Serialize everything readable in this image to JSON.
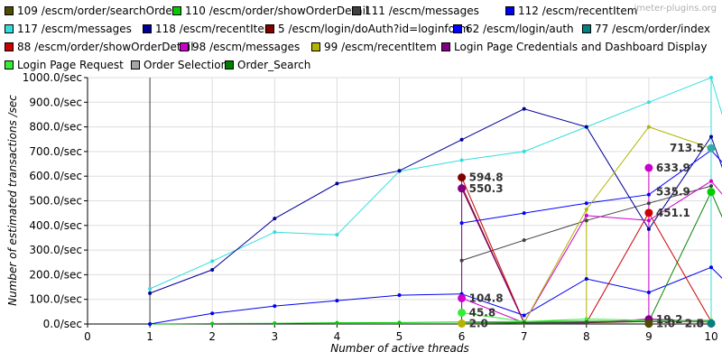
{
  "watermark": "jmeter-plugins.org",
  "chart_data": {
    "type": "line",
    "xlabel": "Number of active threads",
    "ylabel": "Number of estimated transactions /sec",
    "xlim": [
      0,
      10
    ],
    "ylim": [
      0,
      1000
    ],
    "x_ticks": [
      "0",
      "1",
      "2",
      "3",
      "4",
      "5",
      "6",
      "7",
      "8",
      "9",
      "10"
    ],
    "y_ticks": [
      "0.0/sec",
      "100.0/sec",
      "200.0/sec",
      "300.0/sec",
      "400.0/sec",
      "500.0/sec",
      "600.0/sec",
      "700.0/sec",
      "800.0/sec",
      "900.0/sec",
      "1000.0/sec"
    ],
    "grid": true,
    "legend_position": "top",
    "series": [
      {
        "name": "109 /escm/order/searchOrder",
        "color": "#4d4d00",
        "points": [
          [
            6,
            0
          ],
          [
            7,
            5
          ],
          [
            8,
            8
          ],
          [
            9,
            10
          ],
          [
            10,
            8
          ]
        ]
      },
      {
        "name": "110 /escm/order/showOrderDetail",
        "color": "#00cc00",
        "points": [
          [
            1,
            0
          ],
          [
            2,
            2
          ],
          [
            3,
            3
          ],
          [
            4,
            5
          ],
          [
            5,
            6
          ],
          [
            6,
            8
          ],
          [
            7,
            10
          ],
          [
            8,
            12
          ],
          [
            9,
            14
          ],
          [
            10,
            15
          ]
        ]
      },
      {
        "name": "111 /escm/messages",
        "color": "#404040",
        "points": [
          [
            6,
            258
          ],
          [
            7,
            340
          ],
          [
            8,
            420
          ],
          [
            9,
            490
          ],
          [
            10,
            560
          ]
        ]
      },
      {
        "name": "112 /escm/recentItem",
        "color": "#0000ee",
        "points": [
          [
            1,
            0
          ],
          [
            2,
            43
          ],
          [
            3,
            73
          ],
          [
            4,
            95
          ],
          [
            5,
            117
          ],
          [
            6,
            122
          ],
          [
            7,
            35
          ],
          [
            8,
            183
          ],
          [
            9,
            128
          ],
          [
            10,
            230
          ],
          [
            10.2,
            180
          ]
        ]
      },
      {
        "name": "117 /escm/messages",
        "color": "#33dddd",
        "points": [
          [
            1,
            143
          ],
          [
            2,
            255
          ],
          [
            3,
            373
          ],
          [
            4,
            362
          ],
          [
            5,
            620
          ],
          [
            6,
            665
          ],
          [
            7,
            700
          ],
          [
            8,
            800
          ],
          [
            9,
            900
          ],
          [
            10,
            1000
          ],
          [
            10.2,
            830
          ]
        ]
      },
      {
        "name": "118 /escm/recentItem",
        "color": "#000099",
        "points": [
          [
            1,
            125
          ],
          [
            2,
            220
          ],
          [
            3,
            428
          ],
          [
            4,
            570
          ],
          [
            5,
            622
          ],
          [
            6,
            748
          ],
          [
            7,
            873
          ],
          [
            8,
            800
          ],
          [
            9,
            385
          ],
          [
            10,
            760
          ],
          [
            10.2,
            620
          ]
        ]
      },
      {
        "name": "5 /escm/login/doAuth?id=loginform",
        "color": "#800000",
        "points": [
          [
            6,
            560
          ],
          [
            7,
            5
          ],
          [
            8,
            5
          ],
          [
            9,
            10
          ],
          [
            10,
            10
          ]
        ]
      },
      {
        "name": "62 /escm/login/auth",
        "color": "#0000ff",
        "points": [
          [
            6,
            410
          ],
          [
            7,
            450
          ],
          [
            8,
            490
          ],
          [
            9,
            525
          ],
          [
            10,
            705
          ],
          [
            10.2,
            650
          ]
        ]
      },
      {
        "name": "77 /escm/order/index",
        "color": "#008080",
        "points": [
          [
            10,
            713.5
          ]
        ]
      },
      {
        "name": "88 /escm/order/showOrderDetail",
        "color": "#cc0000",
        "points": [
          [
            6,
            594.8
          ],
          [
            7,
            5
          ],
          [
            8,
            5
          ],
          [
            9,
            451.1
          ],
          [
            10,
            10
          ]
        ]
      },
      {
        "name": "98 /escm/messages",
        "color": "#cc00cc",
        "points": [
          [
            6,
            104.8
          ],
          [
            7,
            5
          ],
          [
            8,
            440
          ],
          [
            9,
            420
          ],
          [
            10,
            580
          ],
          [
            10.2,
            520
          ]
        ]
      },
      {
        "name": "99 /escm/recentItem",
        "color": "#b3b300",
        "points": [
          [
            6,
            2
          ],
          [
            7,
            5
          ],
          [
            8,
            465
          ],
          [
            9,
            800
          ],
          [
            10,
            713.5
          ]
        ]
      },
      {
        "name": "Login Page Credentials and Dashboard Display",
        "color": "#800080",
        "points": [
          [
            6,
            550.3
          ],
          [
            7,
            5
          ],
          [
            8,
            5
          ],
          [
            9,
            20
          ],
          [
            10,
            10
          ]
        ]
      },
      {
        "name": "Login Page Request",
        "color": "#33ee33",
        "points": [
          [
            6,
            45.8
          ],
          [
            7,
            10
          ],
          [
            8,
            20
          ],
          [
            9,
            15
          ],
          [
            10,
            15
          ]
        ]
      },
      {
        "name": "Order Selection",
        "color": "#a6a6a6",
        "points": [
          [
            6,
            5
          ],
          [
            7,
            8
          ],
          [
            8,
            10
          ],
          [
            9,
            12
          ],
          [
            10,
            10
          ]
        ]
      },
      {
        "name": "Order_Search",
        "color": "#008000",
        "points": [
          [
            6,
            3
          ],
          [
            7,
            6
          ],
          [
            8,
            8
          ],
          [
            9,
            10
          ],
          [
            10,
            535.9
          ],
          [
            10.2,
            420
          ]
        ]
      }
    ],
    "extra_points": [
      {
        "series": 4,
        "x": 10,
        "y": 535.9
      },
      {
        "series": 11,
        "x": 10,
        "y": 535.9
      }
    ],
    "vlines": [
      {
        "x": 1,
        "color": "#404040",
        "y0": 0,
        "y1": 1000
      },
      {
        "x": 6,
        "color": "#800080",
        "y0": 0,
        "y1": 594.8
      },
      {
        "x": 8,
        "color": "#b3b300",
        "y0": 0,
        "y1": 465
      },
      {
        "x": 9,
        "color": "#cc00cc",
        "y0": 0,
        "y1": 633.9
      },
      {
        "x": 10,
        "color": "#33dddd",
        "y0": 0,
        "y1": 1000
      }
    ],
    "big_markers": [
      {
        "x": 6,
        "y": 594.8,
        "color": "#800000"
      },
      {
        "x": 6,
        "y": 550.3,
        "color": "#800080"
      },
      {
        "x": 6,
        "y": 104.8,
        "color": "#cc00cc"
      },
      {
        "x": 6,
        "y": 45.8,
        "color": "#33ee33"
      },
      {
        "x": 6,
        "y": 2.0,
        "color": "#b3b300"
      },
      {
        "x": 9,
        "y": 633.9,
        "color": "#cc00cc"
      },
      {
        "x": 9,
        "y": 451.1,
        "color": "#cc0000"
      },
      {
        "x": 9,
        "y": 19.2,
        "color": "#800080"
      },
      {
        "x": 9,
        "y": 1.0,
        "color": "#4d4d00"
      },
      {
        "x": 10,
        "y": 713.5,
        "color": "#33aaaa"
      },
      {
        "x": 10,
        "y": 535.9,
        "color": "#00cc00"
      },
      {
        "x": 10,
        "y": 2.0,
        "color": "#404040"
      },
      {
        "x": 10,
        "y": 2.5,
        "color": "#008080"
      }
    ],
    "annotations": [
      {
        "x": 6,
        "y": 594.8,
        "text": "594.8",
        "anchor": "right"
      },
      {
        "x": 6,
        "y": 550.3,
        "text": "550.3",
        "anchor": "right"
      },
      {
        "x": 6,
        "y": 104.8,
        "text": "104.8",
        "anchor": "right"
      },
      {
        "x": 6,
        "y": 45.8,
        "text": "45.8",
        "anchor": "right"
      },
      {
        "x": 6,
        "y": 2.0,
        "text": "2.0",
        "anchor": "right"
      },
      {
        "x": 9,
        "y": 633.9,
        "text": "633.9",
        "anchor": "right"
      },
      {
        "x": 9,
        "y": 451.1,
        "text": "451.1",
        "anchor": "right"
      },
      {
        "x": 9,
        "y": 535.9,
        "text": "535.9",
        "anchor": "right"
      },
      {
        "x": 9,
        "y": 19.2,
        "text": "19.2",
        "anchor": "right"
      },
      {
        "x": 9,
        "y": 1.0,
        "text": "1.0",
        "anchor": "right"
      },
      {
        "x": 10,
        "y": 713.5,
        "text": "713.5",
        "anchor": "left"
      },
      {
        "x": 10,
        "y": 2.0,
        "text": "2.0",
        "anchor": "left"
      },
      {
        "x": 10,
        "y": 2.5,
        "text": "2.5",
        "anchor": "left"
      }
    ]
  }
}
